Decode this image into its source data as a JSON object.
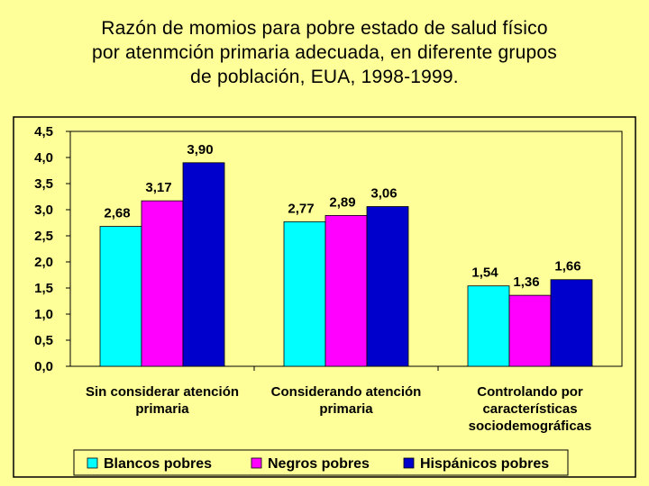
{
  "chart_data": {
    "type": "bar",
    "title_lines": [
      "Razón de momios para pobre estado de salud físico",
      "por atenmción primaria adecuada, en diferente grupos",
      "de población, EUA, 1998-1999."
    ],
    "categories": [
      [
        "Sin considerar atención",
        "primaria"
      ],
      [
        "Considerando atención",
        "primaria"
      ],
      [
        "Controlando por",
        "características",
        "sociodemográficas"
      ]
    ],
    "series": [
      {
        "name": "Blancos pobres",
        "color": "#00FFFF",
        "values": [
          2.68,
          2.77,
          1.54
        ],
        "labels": [
          "2,68",
          "2,77",
          "1,54"
        ]
      },
      {
        "name": "Negros pobres",
        "color": "#FF00FF",
        "values": [
          3.17,
          2.89,
          1.36
        ],
        "labels": [
          "3,17",
          "2,89",
          "1,36"
        ]
      },
      {
        "name": "Hispánicos pobres",
        "color": "#0000CC",
        "values": [
          3.9,
          3.06,
          1.66
        ],
        "labels": [
          "3,90",
          "3,06",
          "1,66"
        ]
      }
    ],
    "yticks": [
      0,
      0.5,
      1.0,
      1.5,
      2.0,
      2.5,
      3.0,
      3.5,
      4.0,
      4.5
    ],
    "ytick_labels": [
      "0,0",
      "0,5",
      "1,0",
      "1,5",
      "2,0",
      "2,5",
      "3,0",
      "3,5",
      "4,0",
      "4,5"
    ],
    "ylim": [
      0,
      4.5
    ],
    "grid": false,
    "legend_position": "bottom"
  }
}
